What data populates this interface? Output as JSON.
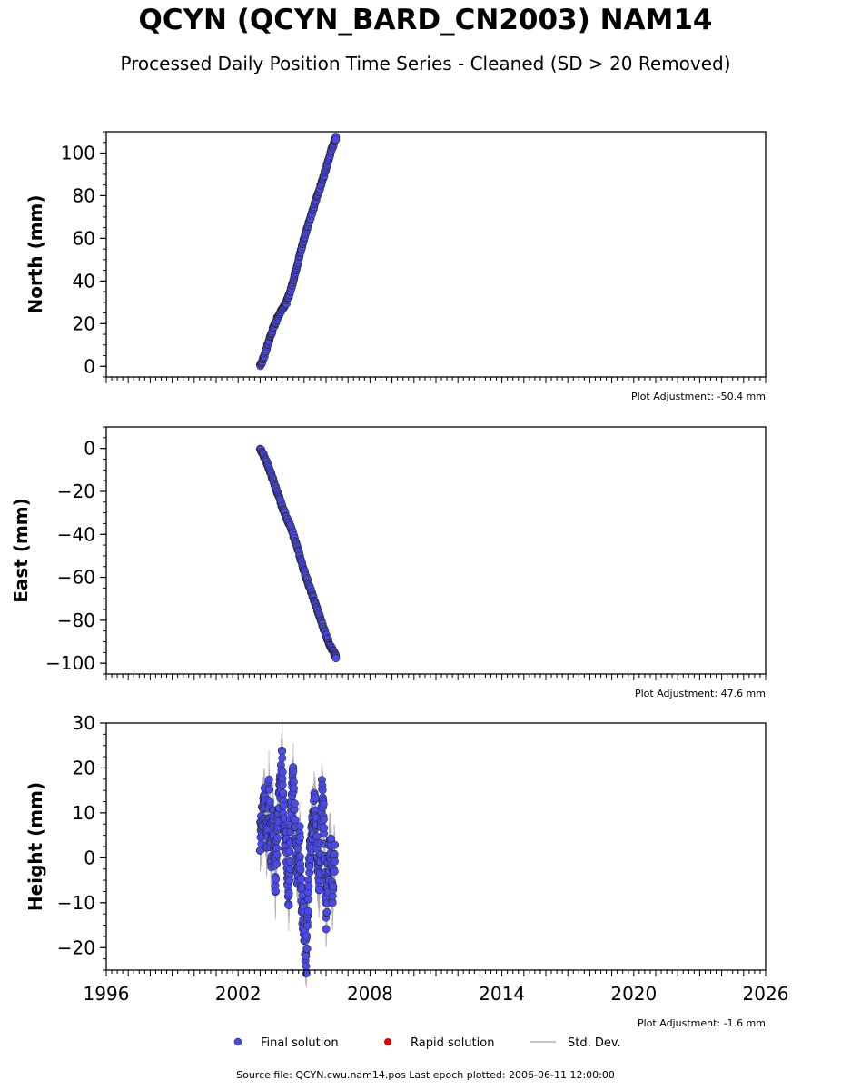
{
  "title": "QCYN (QCYN_BARD_CN2003) NAM14",
  "subtitle": "Processed Daily Position Time Series - Cleaned (SD > 20 Removed)",
  "source": "Source file: QCYN.cwu.nam14.pos  Last epoch plotted: 2006-06-11 12:00:00",
  "colors": {
    "final": "#4a4ae8",
    "rapid": "#dd0000",
    "std": "#b0b0b0"
  },
  "chart_data": [
    {
      "type": "scatter",
      "ylabel": "North (mm)",
      "xlim": [
        1996,
        2026
      ],
      "ylim": [
        -5,
        110
      ],
      "yticks": [
        0,
        20,
        40,
        60,
        80,
        100
      ],
      "note": "Plot Adjustment: -50.4 mm",
      "series": [
        {
          "name": "Final solution",
          "x": [
            2003.0,
            2003.2,
            2003.4,
            2003.6,
            2003.8,
            2004.0,
            2004.2,
            2004.4,
            2004.6,
            2004.8,
            2005.0,
            2005.2,
            2005.4,
            2005.6,
            2005.8,
            2006.0,
            2006.2,
            2006.4,
            2006.45
          ],
          "y": [
            0,
            5,
            12,
            18,
            23,
            27,
            30,
            36,
            44,
            52,
            60,
            67,
            73,
            80,
            86,
            93,
            100,
            106,
            107
          ]
        }
      ]
    },
    {
      "type": "scatter",
      "ylabel": "East (mm)",
      "xlim": [
        1996,
        2026
      ],
      "ylim": [
        -105,
        10
      ],
      "yticks": [
        0,
        -20,
        -40,
        -60,
        -80,
        -100
      ],
      "note": "Plot Adjustment: 47.6 mm",
      "series": [
        {
          "name": "Final solution",
          "x": [
            2003.0,
            2003.2,
            2003.4,
            2003.6,
            2003.8,
            2004.0,
            2004.2,
            2004.4,
            2004.6,
            2004.8,
            2005.0,
            2005.2,
            2005.4,
            2005.6,
            2005.8,
            2006.0,
            2006.2,
            2006.4,
            2006.45
          ],
          "y": [
            0,
            -4,
            -9,
            -15,
            -21,
            -27,
            -32,
            -37,
            -43,
            -50,
            -57,
            -63,
            -69,
            -75,
            -81,
            -87,
            -92,
            -96,
            -97
          ]
        }
      ]
    },
    {
      "type": "scatter",
      "ylabel": "Height (mm)",
      "xlim": [
        1996,
        2026
      ],
      "ylim": [
        -25,
        30
      ],
      "yticks": [
        -20,
        -10,
        0,
        10,
        20,
        30
      ],
      "xticks": [
        1996,
        2002,
        2008,
        2014,
        2020,
        2026
      ],
      "note": "Plot Adjustment: -1.6 mm",
      "series": [
        {
          "name": "Final solution",
          "x": [
            2003.0,
            2003.1,
            2003.2,
            2003.3,
            2003.4,
            2003.5,
            2003.6,
            2003.7,
            2003.8,
            2003.9,
            2004.0,
            2004.1,
            2004.2,
            2004.3,
            2004.4,
            2004.5,
            2004.6,
            2004.7,
            2004.8,
            2004.9,
            2005.0,
            2005.1,
            2005.2,
            2005.3,
            2005.4,
            2005.5,
            2005.6,
            2005.7,
            2005.8,
            2005.9,
            2006.0,
            2006.1,
            2006.2,
            2006.3,
            2006.4
          ],
          "y": [
            5,
            8,
            12,
            3,
            15,
            0,
            10,
            -5,
            8,
            14,
            22,
            6,
            2,
            -8,
            10,
            18,
            5,
            -3,
            4,
            -10,
            -15,
            -22,
            -6,
            3,
            8,
            12,
            0,
            -6,
            14,
            8,
            -12,
            -4,
            4,
            -8,
            2
          ]
        }
      ]
    }
  ],
  "legend": {
    "final": "Final solution",
    "rapid": "Rapid solution",
    "std": "Std. Dev."
  }
}
